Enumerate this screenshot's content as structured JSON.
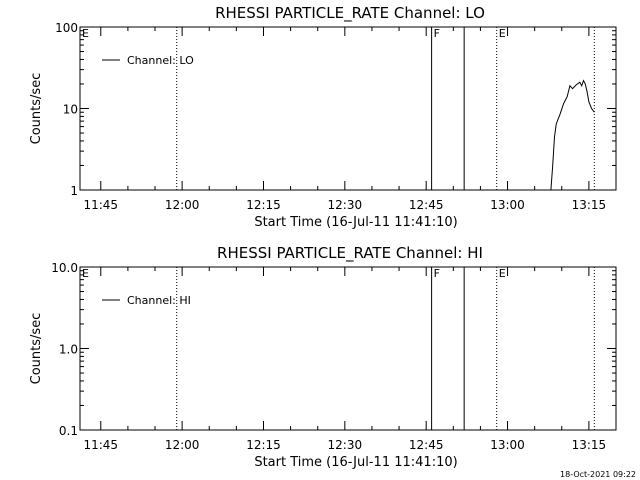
{
  "chart_data": [
    {
      "type": "line",
      "title": "RHESSI PARTICLE_RATE Channel: LO",
      "xlabel": "Start Time (16-Jul-11 11:41:10)",
      "ylabel": "Counts/sec",
      "y_scale": "log",
      "ylim": [
        1,
        100
      ],
      "xlim": [
        "11:41:10",
        "13:20:00"
      ],
      "x_tick_labels": [
        "11:45",
        "12:00",
        "12:15",
        "12:30",
        "12:45",
        "13:00",
        "13:15"
      ],
      "y_tick_labels": [
        "1",
        "10",
        "100"
      ],
      "legend": "Channel: LO",
      "legend_position": "top-left",
      "series": [
        {
          "name": "Channel: LO",
          "x": [
            "13:08:00",
            "13:08:20",
            "13:08:40",
            "13:09:00",
            "13:09:40",
            "13:10:20",
            "13:11:00",
            "13:11:30",
            "13:12:00",
            "13:12:40",
            "13:13:20",
            "13:13:40",
            "13:14:00",
            "13:14:20",
            "13:14:40",
            "13:15:00",
            "13:15:30",
            "13:16:00"
          ],
          "y": [
            1.0,
            2.0,
            4.5,
            6.5,
            8.5,
            11.5,
            14.0,
            19.0,
            17.5,
            19.5,
            21.0,
            19.0,
            22.0,
            20.0,
            16.0,
            12.0,
            10.0,
            9.0
          ]
        }
      ],
      "markers": [
        {
          "label": "E",
          "time": "11:41:10",
          "style": "dotted"
        },
        {
          "label": "",
          "time": "11:59:00",
          "style": "dotted"
        },
        {
          "label": "F",
          "time": "12:46:00",
          "style": "solid"
        },
        {
          "label": "",
          "time": "12:52:00",
          "style": "solid"
        },
        {
          "label": "E",
          "time": "12:58:00",
          "style": "dotted"
        },
        {
          "label": "",
          "time": "13:16:00",
          "style": "dotted"
        }
      ]
    },
    {
      "type": "line",
      "title": "RHESSI PARTICLE_RATE Channel: HI",
      "xlabel": "Start Time (16-Jul-11 11:41:10)",
      "ylabel": "Counts/sec",
      "y_scale": "log",
      "ylim": [
        0.1,
        10
      ],
      "xlim": [
        "11:41:10",
        "13:20:00"
      ],
      "x_tick_labels": [
        "11:45",
        "12:00",
        "12:15",
        "12:30",
        "12:45",
        "13:00",
        "13:15"
      ],
      "y_tick_labels": [
        "0.1",
        "1.0",
        "10.0"
      ],
      "legend": "Channel: HI",
      "legend_position": "top-left",
      "series": [
        {
          "name": "Channel: HI",
          "x": [],
          "y": []
        }
      ],
      "markers": [
        {
          "label": "E",
          "time": "11:41:10",
          "style": "dotted"
        },
        {
          "label": "",
          "time": "11:59:00",
          "style": "dotted"
        },
        {
          "label": "F",
          "time": "12:46:00",
          "style": "solid"
        },
        {
          "label": "",
          "time": "12:52:00",
          "style": "solid"
        },
        {
          "label": "E",
          "time": "12:58:00",
          "style": "dotted"
        },
        {
          "label": "",
          "time": "13:16:00",
          "style": "dotted"
        }
      ]
    }
  ],
  "footer": {
    "timestamp": "18-Oct-2021 09:22"
  }
}
